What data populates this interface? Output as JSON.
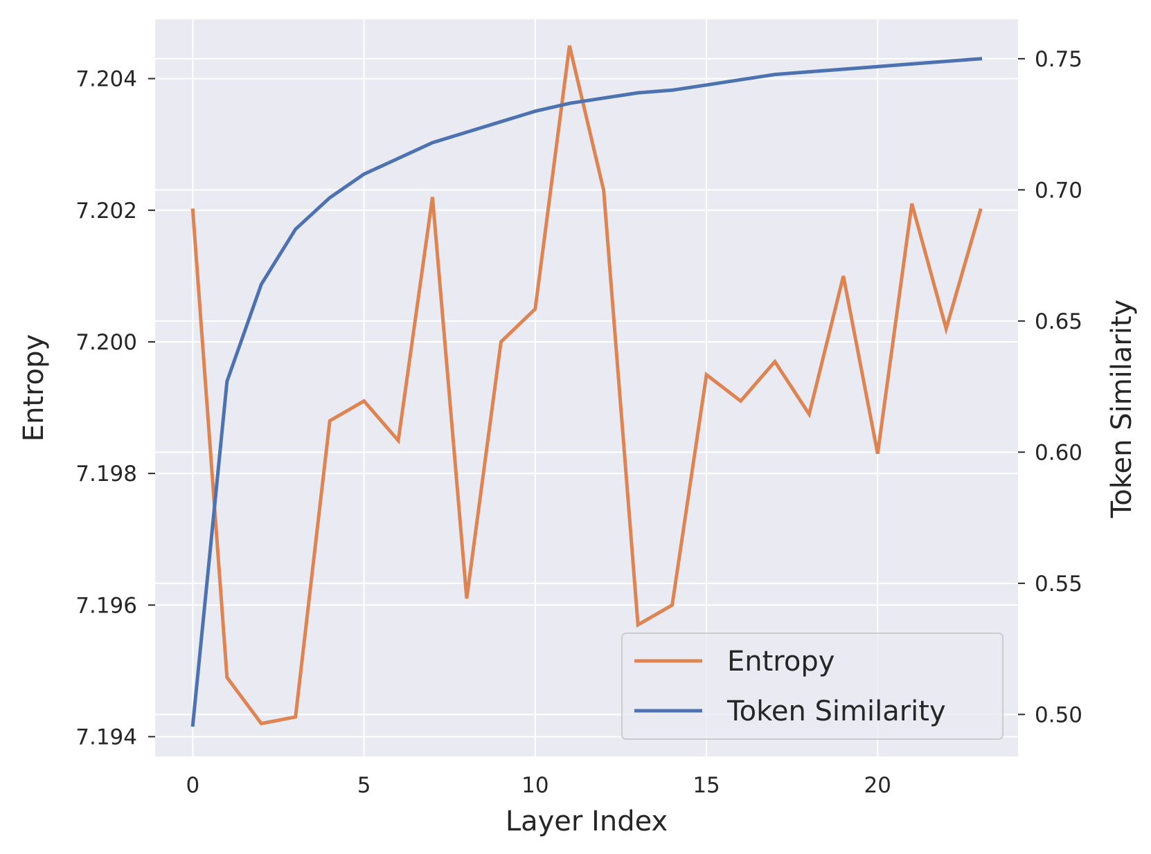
{
  "chart_data": {
    "type": "line",
    "xlabel": "Layer Index",
    "ylabel_left": "Entropy",
    "ylabel_right": "Token Similarity",
    "x": [
      0,
      1,
      2,
      3,
      4,
      5,
      6,
      7,
      8,
      9,
      10,
      11,
      12,
      13,
      14,
      15,
      16,
      17,
      18,
      19,
      20,
      21,
      22,
      23
    ],
    "xlim": [
      -1.1,
      24.1
    ],
    "xticks": [
      0,
      5,
      10,
      15,
      20
    ],
    "left_axis": {
      "ylim": [
        7.1937,
        7.2049
      ],
      "ticks": [
        "7.194",
        "7.196",
        "7.198",
        "7.200",
        "7.202",
        "7.204"
      ]
    },
    "right_axis": {
      "ylim": [
        0.484,
        0.765
      ],
      "ticks": [
        "0.50",
        "0.55",
        "0.60",
        "0.65",
        "0.70",
        "0.75"
      ]
    },
    "series": [
      {
        "name": "Entropy",
        "axis": "left",
        "color": "#dd8452",
        "values": [
          7.202,
          7.1949,
          7.1942,
          7.1943,
          7.1988,
          7.1991,
          7.1985,
          7.2022,
          7.1961,
          7.2,
          7.2005,
          7.2045,
          7.2023,
          7.1957,
          7.196,
          7.1995,
          7.1991,
          7.1997,
          7.1989,
          7.201,
          7.1983,
          7.2021,
          7.2002,
          7.202
        ]
      },
      {
        "name": "Token Similarity",
        "axis": "right",
        "color": "#4c72b0",
        "values": [
          0.496,
          0.627,
          0.664,
          0.685,
          0.697,
          0.706,
          0.712,
          0.718,
          0.722,
          0.726,
          0.73,
          0.733,
          0.735,
          0.737,
          0.738,
          0.74,
          0.742,
          0.744,
          0.745,
          0.746,
          0.747,
          0.748,
          0.749,
          0.75
        ]
      }
    ],
    "legend": {
      "location": "lower-right",
      "entries": [
        "Entropy",
        "Token Similarity"
      ]
    },
    "grid": true,
    "colors": {
      "plot_background": "#eaeaf2",
      "grid": "#ffffff",
      "text": "#262626"
    }
  }
}
